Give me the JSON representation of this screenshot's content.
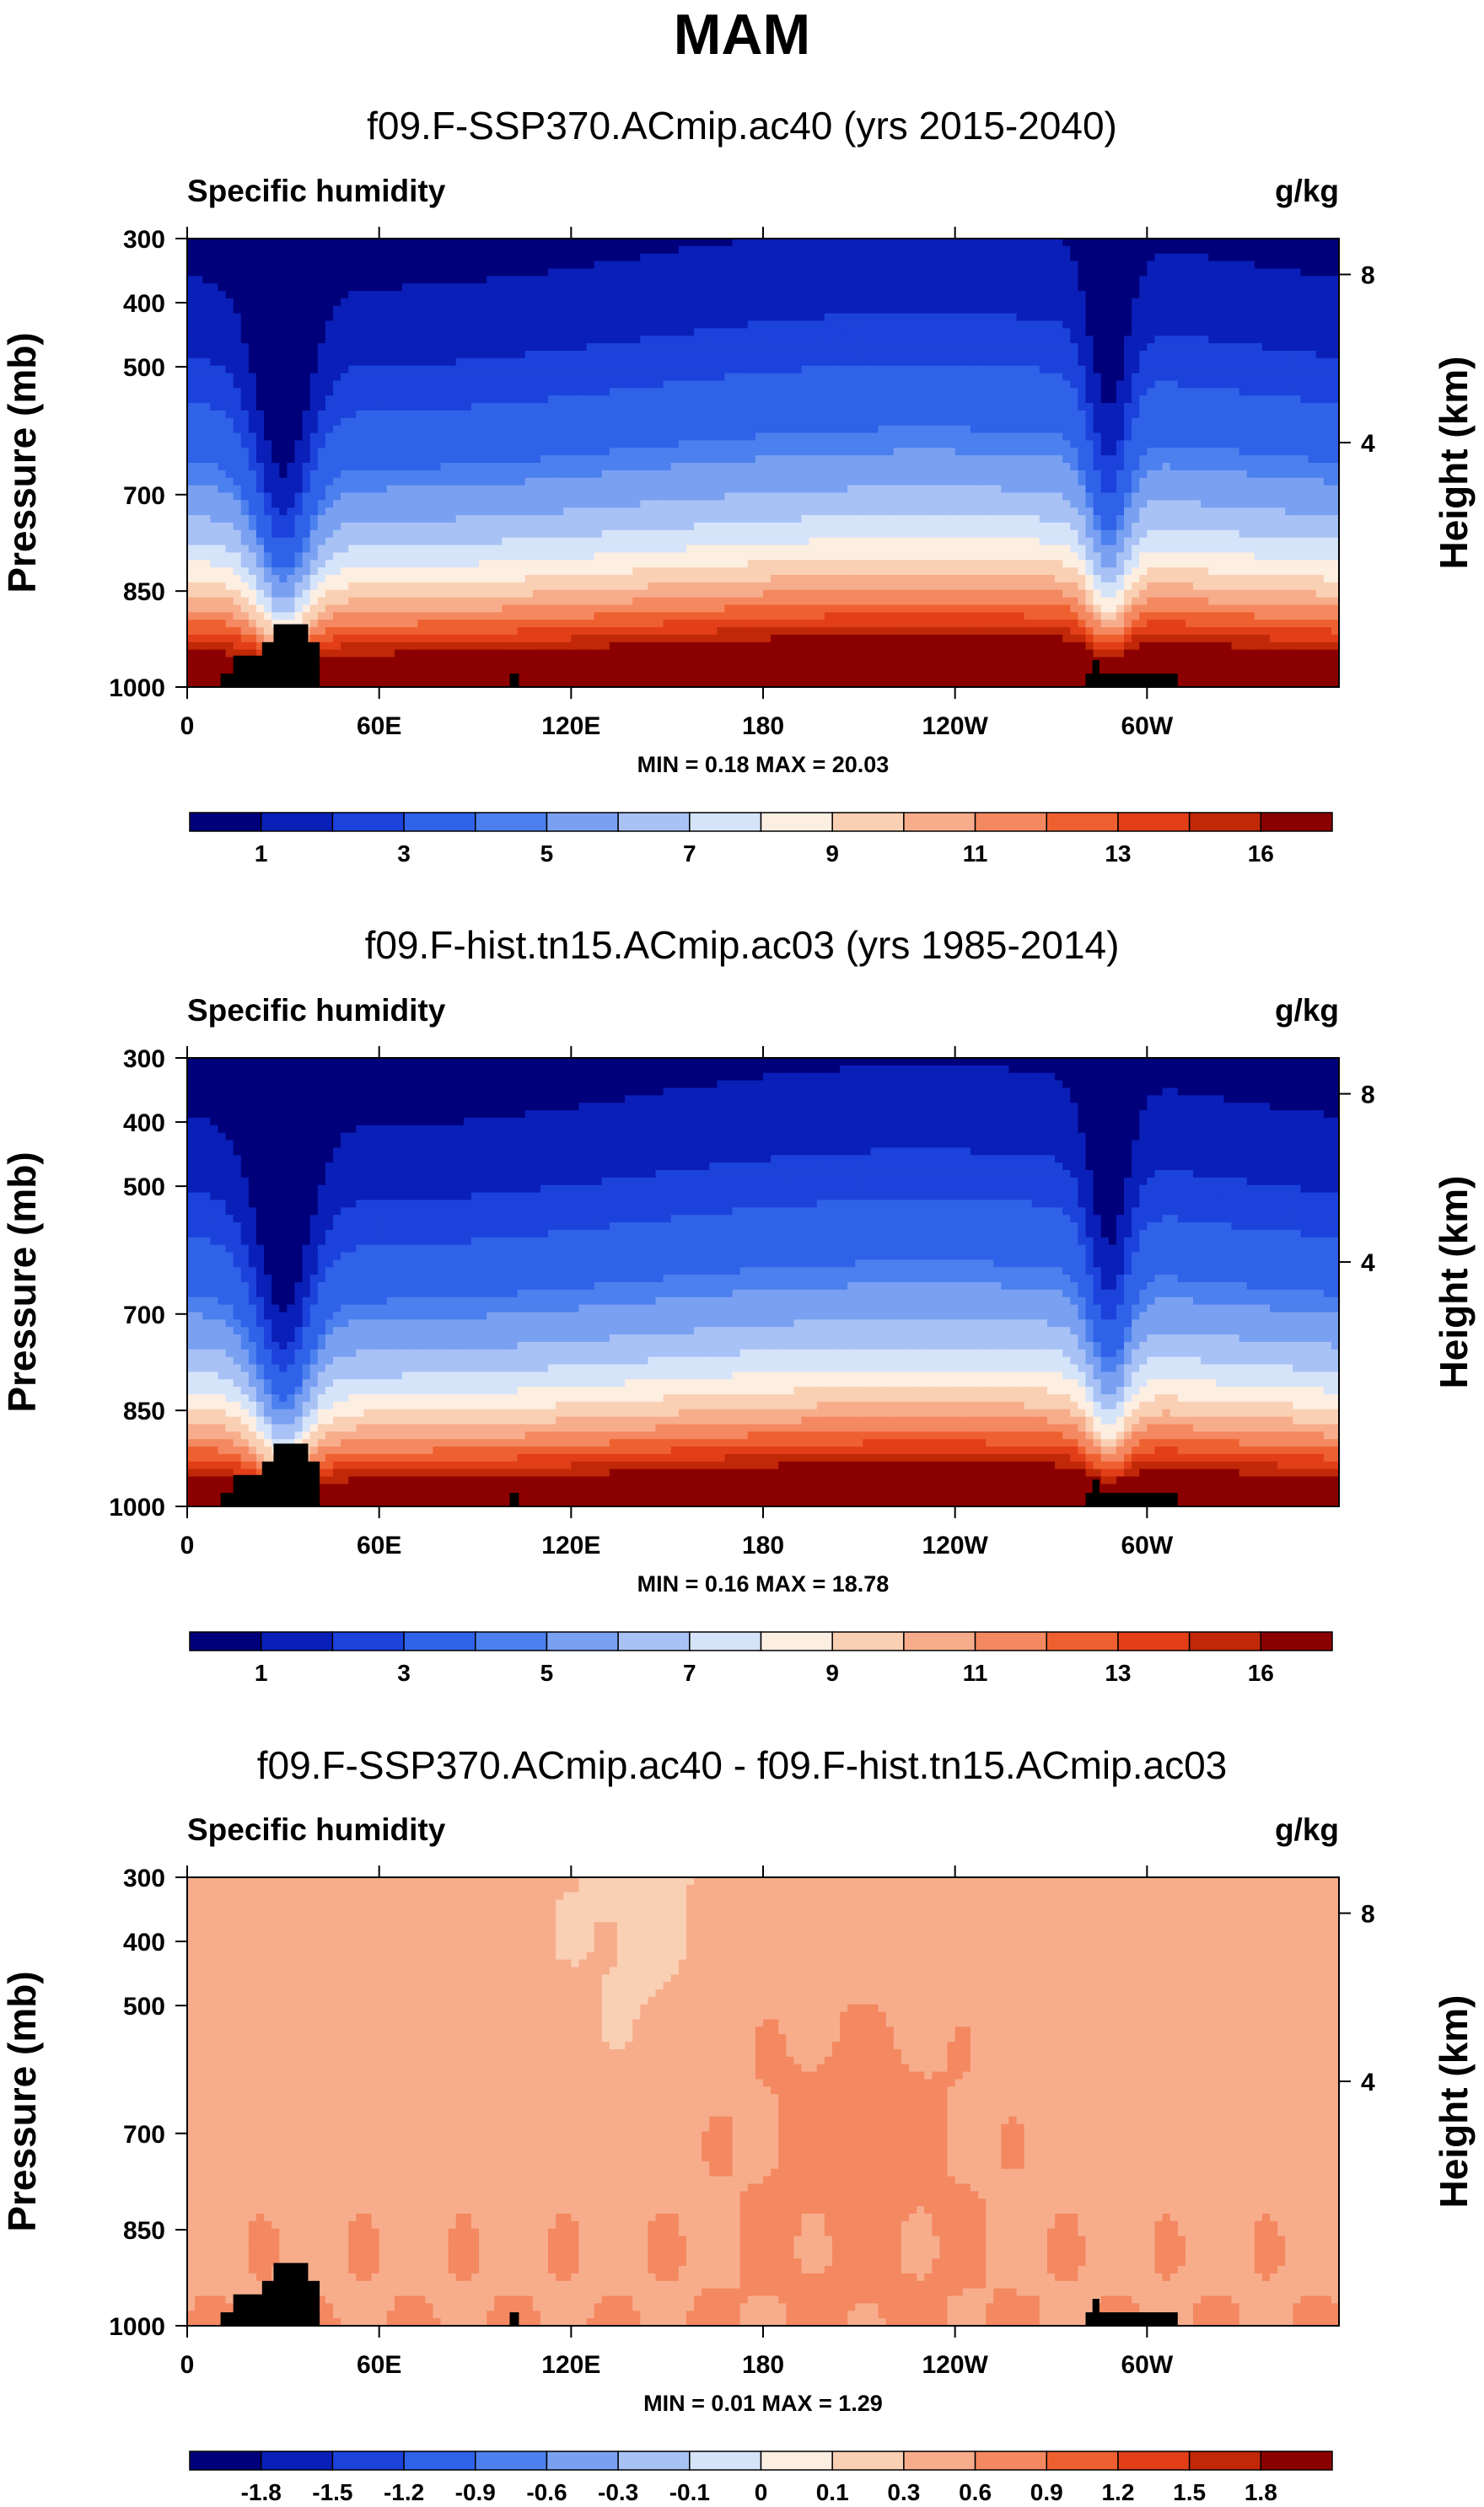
{
  "page": {
    "title": "MAM"
  },
  "common": {
    "x_ticks": [
      "0",
      "60E",
      "120E",
      "180",
      "120W",
      "60W"
    ],
    "p_ticks": [
      "300",
      "400",
      "500",
      "700",
      "850",
      "1000"
    ],
    "h_ticks": [
      "8",
      "4"
    ],
    "ylabel": "Pressure (mb)",
    "y2label": "Height (km)",
    "var_name": "Specific humidity",
    "units": "g/kg"
  },
  "chart_data": [
    {
      "type": "heatmap",
      "title": "f09.F-SSP370.ACmip.ac40 (yrs 2015-2040)",
      "left_label": "Specific humidity",
      "right_label": "g/kg",
      "xlabel": "",
      "ylabel": "Pressure (mb)",
      "y2label": "Height (km)",
      "x_ticks": [
        "0",
        "60E",
        "120E",
        "180",
        "120W",
        "60W"
      ],
      "y_ticks": [
        "300",
        "400",
        "500",
        "700",
        "850",
        "1000"
      ],
      "y2_ticks": [
        "8",
        "4"
      ],
      "min": 0.18,
      "max": 20.03,
      "stats_text": "MIN =   0.18  MAX =  20.03",
      "colorbar_labels": [
        "1",
        "3",
        "5",
        "7",
        "9",
        "11",
        "13",
        "16"
      ]
    },
    {
      "type": "heatmap",
      "title": "f09.F-hist.tn15.ACmip.ac03 (yrs 1985-2014)",
      "left_label": "Specific humidity",
      "right_label": "g/kg",
      "xlabel": "",
      "ylabel": "Pressure (mb)",
      "y2label": "Height (km)",
      "x_ticks": [
        "0",
        "60E",
        "120E",
        "180",
        "120W",
        "60W"
      ],
      "y_ticks": [
        "300",
        "400",
        "500",
        "700",
        "850",
        "1000"
      ],
      "y2_ticks": [
        "8",
        "4"
      ],
      "min": 0.16,
      "max": 18.78,
      "stats_text": "MIN =   0.16  MAX =  18.78",
      "colorbar_labels": [
        "1",
        "3",
        "5",
        "7",
        "9",
        "11",
        "13",
        "16"
      ]
    },
    {
      "type": "heatmap",
      "title": "f09.F-SSP370.ACmip.ac40 - f09.F-hist.tn15.ACmip.ac03",
      "left_label": "Specific humidity",
      "right_label": "g/kg",
      "xlabel": "",
      "ylabel": "Pressure (mb)",
      "y2label": "Height (km)",
      "x_ticks": [
        "0",
        "60E",
        "120E",
        "180",
        "120W",
        "60W"
      ],
      "y_ticks": [
        "300",
        "400",
        "500",
        "700",
        "850",
        "1000"
      ],
      "y2_ticks": [
        "8",
        "4"
      ],
      "min": 0.01,
      "max": 1.29,
      "stats_text": "MIN =   0.01  MAX =   1.29",
      "colorbar_labels": [
        "-1.8",
        "-1.5",
        "-1.2",
        "-0.9",
        "-0.6",
        "-0.3",
        "-0.1",
        "0",
        "0.1",
        "0.3",
        "0.6",
        "0.9",
        "1.2",
        "1.5",
        "1.8"
      ]
    }
  ],
  "colors": {
    "ramp": [
      "#00007a",
      "#0a1fb8",
      "#1c42dc",
      "#2f62e8",
      "#4c80ee",
      "#7aa0f2",
      "#a8c2f6",
      "#d6e4fa",
      "#fdeee2",
      "#fad0b4",
      "#f7ad8c",
      "#f48860",
      "#ef6030",
      "#e23e18",
      "#c02808",
      "#8b0000"
    ],
    "terrain": "#000000"
  }
}
